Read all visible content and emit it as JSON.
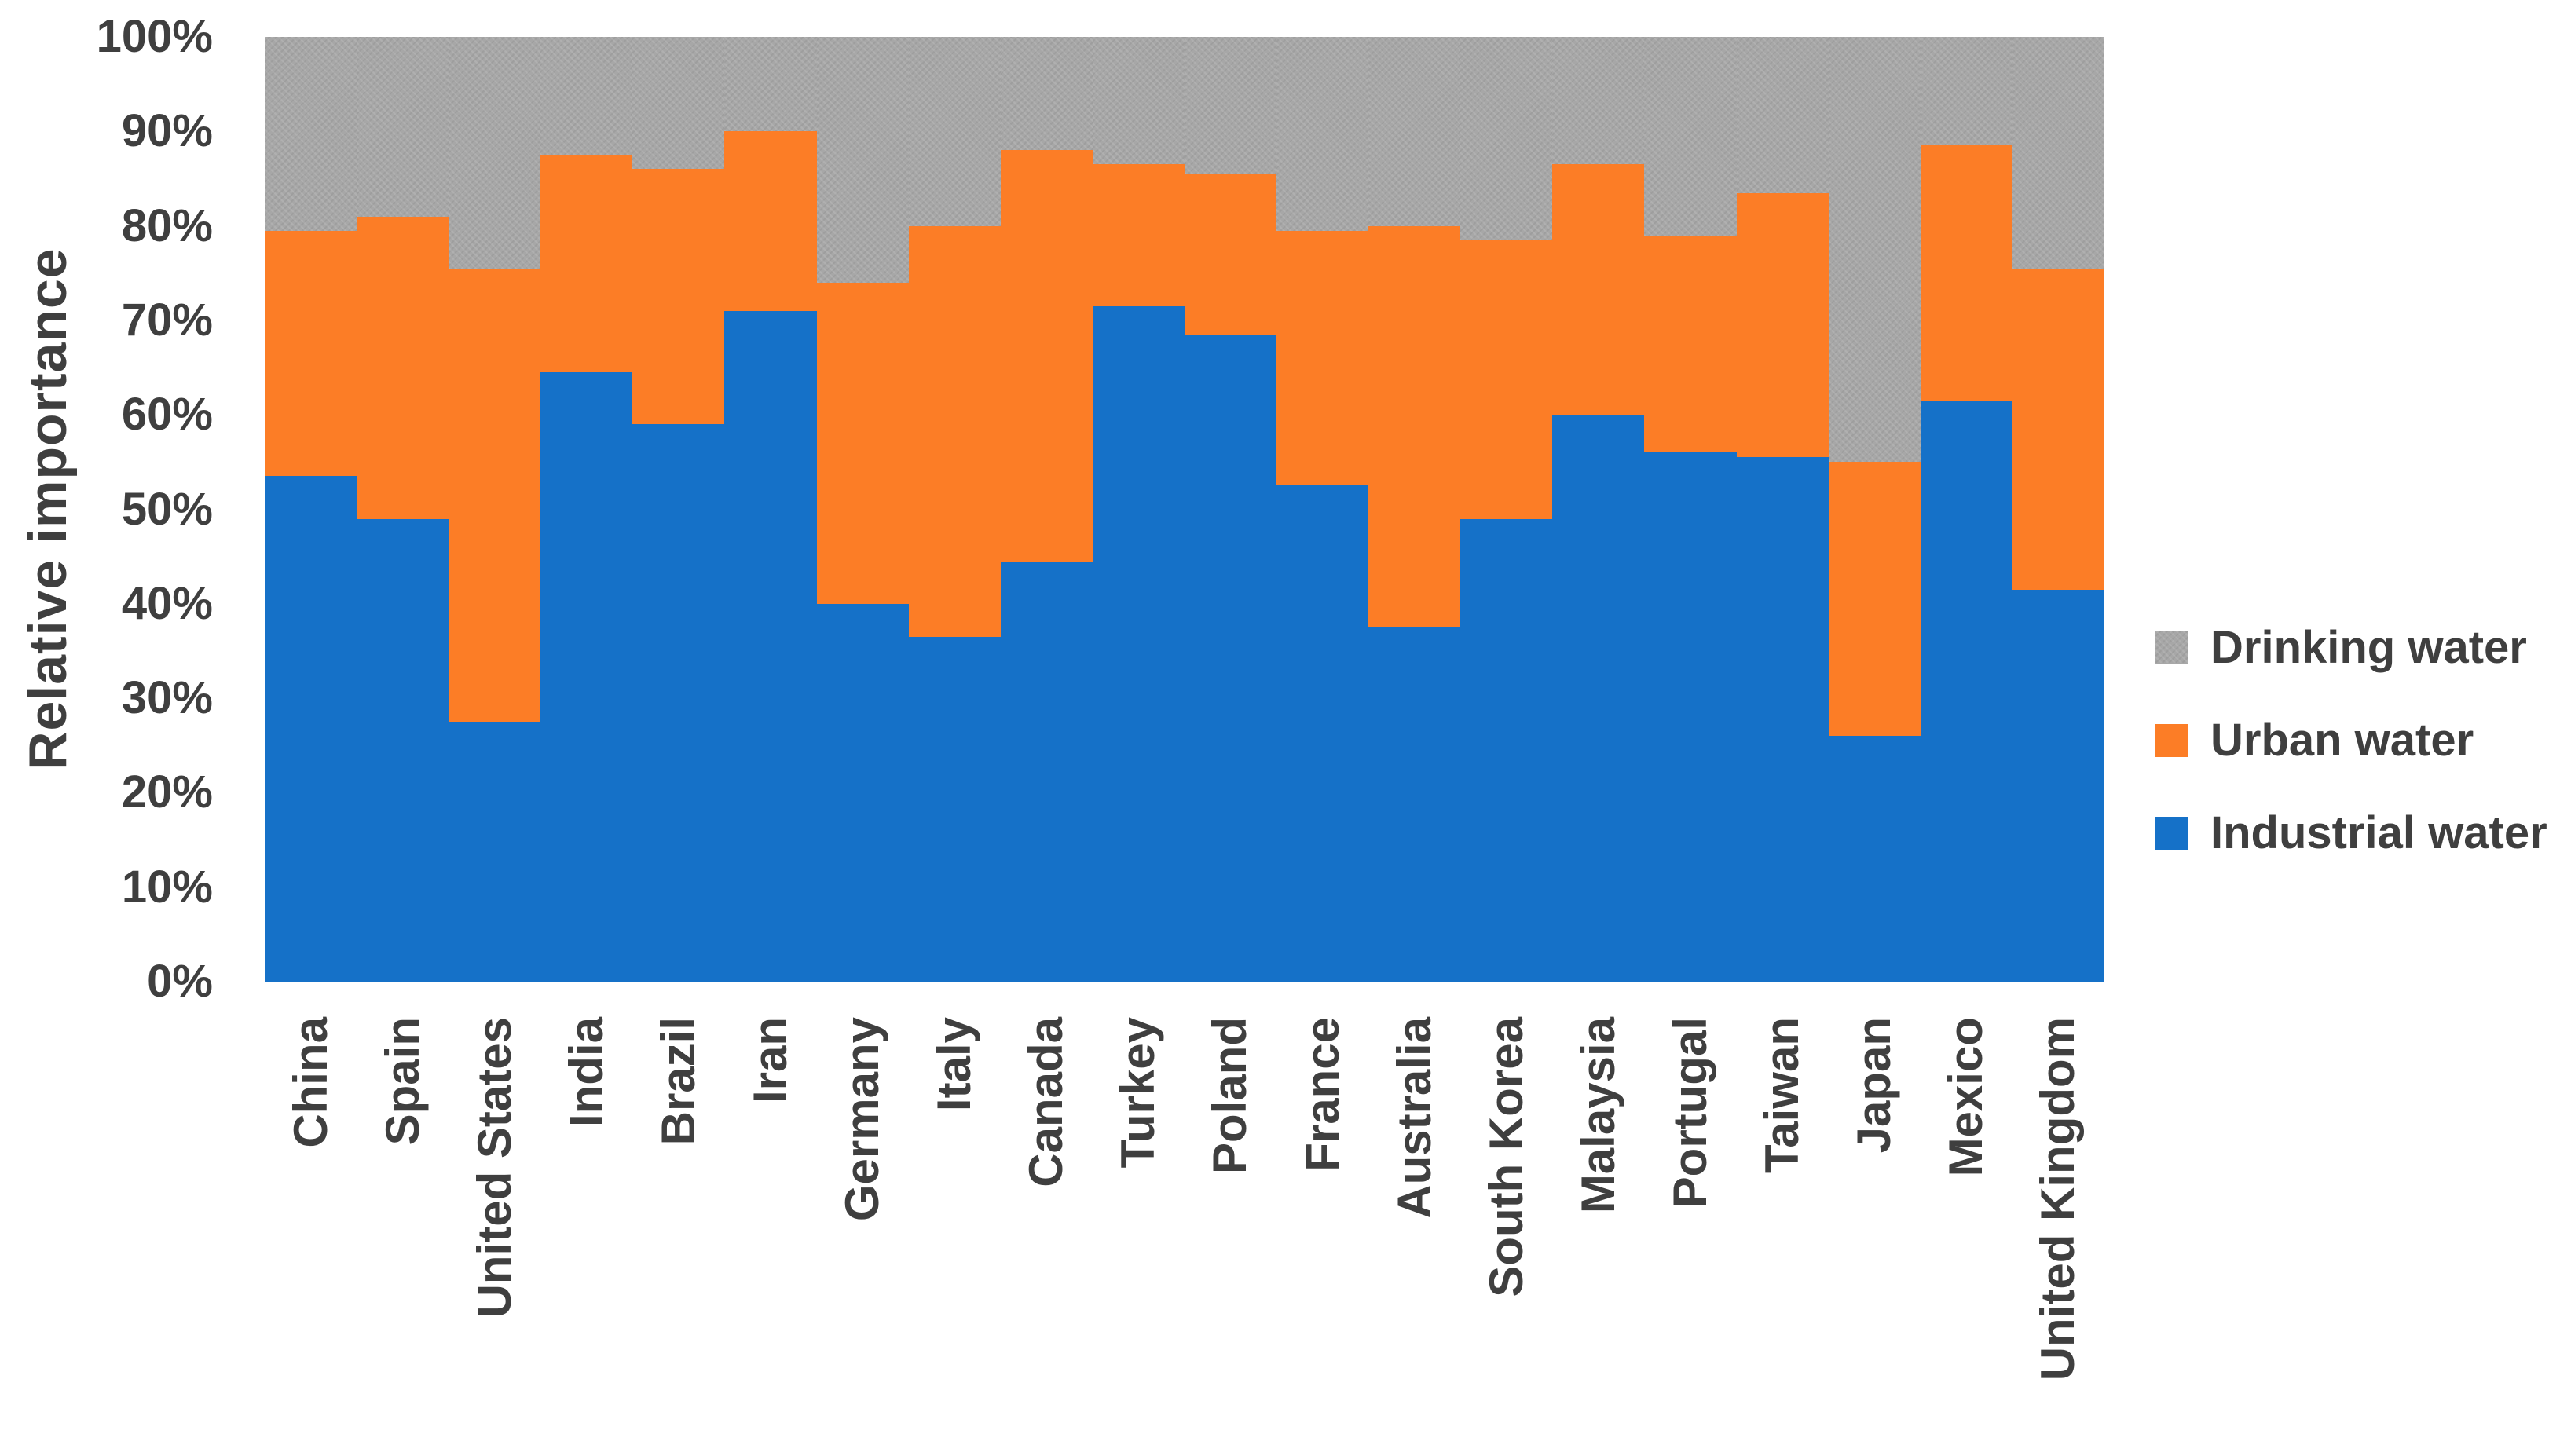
{
  "chart_data": {
    "type": "bar",
    "stacked": true,
    "percent_stacked": true,
    "title": "",
    "xlabel": "",
    "ylabel": "Relative importance",
    "ylim": [
      0,
      100
    ],
    "ytick_step": 10,
    "ytick_labels": [
      "0%",
      "10%",
      "20%",
      "30%",
      "40%",
      "50%",
      "60%",
      "70%",
      "80%",
      "90%",
      "100%"
    ],
    "grid": false,
    "categories": [
      "China",
      "Spain",
      "United States",
      "India",
      "Brazil",
      "Iran",
      "Germany",
      "Italy",
      "Canada",
      "Turkey",
      "Poland",
      "France",
      "Australia",
      "South Korea",
      "Malaysia",
      "Portugal",
      "Taiwan",
      "Japan",
      "Mexico",
      "United Kingdom"
    ],
    "series": [
      {
        "name": "Industrial water",
        "color": "#1571c8",
        "values": [
          53.5,
          49.0,
          27.5,
          64.5,
          59.0,
          71.0,
          40.0,
          36.5,
          44.5,
          71.5,
          68.5,
          52.5,
          37.5,
          49.0,
          60.0,
          56.0,
          55.5,
          26.0,
          61.5,
          41.5
        ]
      },
      {
        "name": "Urban water",
        "color": "#fc7d26",
        "values": [
          26.0,
          32.0,
          48.0,
          23.0,
          27.0,
          19.0,
          34.0,
          43.5,
          43.5,
          15.0,
          17.0,
          27.0,
          42.5,
          29.5,
          26.5,
          23.0,
          28.0,
          29.0,
          27.0,
          34.0
        ]
      },
      {
        "name": "Drinking water",
        "color": "#a7a7a7",
        "values": [
          20.5,
          19.0,
          24.5,
          12.5,
          14.0,
          10.0,
          26.0,
          20.0,
          12.0,
          13.5,
          14.5,
          20.5,
          20.0,
          21.5,
          13.5,
          21.0,
          16.5,
          45.0,
          11.5,
          24.5
        ]
      }
    ],
    "legend": {
      "position": "right",
      "entries_top_to_bottom": [
        "Drinking water",
        "Urban water",
        "Industrial water"
      ]
    }
  },
  "colors": {
    "industrial_blue": "#1571c8",
    "urban_orange": "#fc7d26",
    "drinking_gray": "#a7a7a7",
    "text": "#3f3f3f",
    "background": "#ffffff"
  }
}
